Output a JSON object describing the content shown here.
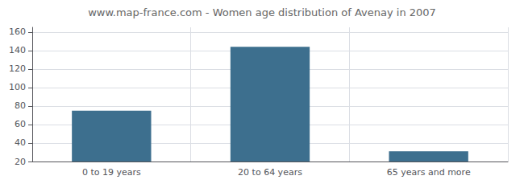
{
  "chart_data": {
    "type": "bar",
    "title": "www.map-france.com - Women age distribution of Avenay in 2007",
    "categories": [
      "0 to 19 years",
      "20 to 64 years",
      "65 years and more"
    ],
    "values": [
      75,
      144,
      31
    ],
    "color": "#3d6f8e",
    "ylim": [
      20,
      165
    ],
    "yticks": [
      20,
      40,
      60,
      80,
      100,
      120,
      140,
      160
    ],
    "grid": true
  }
}
